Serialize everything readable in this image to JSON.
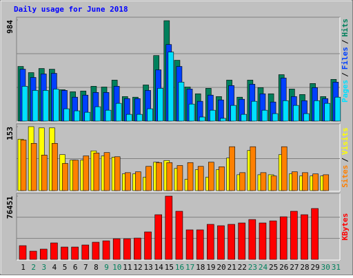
{
  "chart_data": [
    {
      "type": "bar",
      "title": "Daily usage for June 2018",
      "ylim": [
        0,
        984
      ],
      "yticks": [
        984
      ],
      "legend_separator": "/",
      "series": [
        {
          "name": "Hits",
          "color": "#00805c",
          "values": [
            532,
            472,
            512,
            505,
            306,
            286,
            293,
            339,
            332,
            399,
            239,
            233,
            352,
            638,
            977,
            592,
            332,
            266,
            319,
            239,
            399,
            233,
            399,
            326,
            266,
            452,
            312,
            259,
            366,
            239,
            406
          ]
        },
        {
          "name": "Files",
          "color": "#0040ff",
          "values": [
            505,
            425,
            459,
            465,
            299,
            233,
            253,
            279,
            279,
            339,
            219,
            219,
            299,
            499,
            745,
            532,
            312,
            193,
            253,
            206,
            346,
            213,
            359,
            266,
            186,
            419,
            239,
            199,
            326,
            219,
            379
          ]
        },
        {
          "name": "Pages",
          "color": "#00e0ff",
          "values": [
            339,
            299,
            299,
            312,
            120,
            100,
            86,
            140,
            106,
            173,
            66,
            66,
            120,
            319,
            672,
            379,
            166,
            40,
            106,
            27,
            153,
            66,
            193,
            106,
            73,
            199,
            153,
            73,
            199,
            173,
            233
          ]
        }
      ]
    },
    {
      "type": "bar",
      "ylim": [
        0,
        153
      ],
      "yticks": [
        153
      ],
      "legend_separator": "/",
      "series": [
        {
          "name": "Visits",
          "color": "#ffff00",
          "values": [
            123,
            153,
            150,
            150,
            86,
            73,
            73,
            95,
            83,
            80,
            40,
            40,
            32,
            68,
            72,
            53,
            27,
            50,
            32,
            50,
            78,
            38,
            96,
            38,
            38,
            86,
            40,
            35,
            35,
            35,
            null
          ]
        },
        {
          "name": "Sites",
          "color": "#ff8000",
          "values": [
            121,
            113,
            85,
            113,
            65,
            73,
            83,
            90,
            91,
            81,
            43,
            45,
            58,
            67,
            67,
            60,
            67,
            58,
            68,
            57,
            105,
            43,
            105,
            43,
            35,
            105,
            45,
            43,
            40,
            38,
            null
          ]
        }
      ]
    },
    {
      "type": "bar",
      "ylim": [
        0,
        76451
      ],
      "yticks": [
        76451
      ],
      "categories": [
        "1",
        "2",
        "3",
        "4",
        "5",
        "6",
        "7",
        "8",
        "9",
        "10",
        "11",
        "12",
        "13",
        "14",
        "15",
        "16",
        "17",
        "18",
        "19",
        "20",
        "21",
        "22",
        "23",
        "24",
        "25",
        "26",
        "27",
        "28",
        "29",
        "30",
        "31"
      ],
      "category_colors": [
        "#000000",
        "#00805c",
        "#00805c",
        "#000000",
        "#000000",
        "#000000",
        "#000000",
        "#000000",
        "#00805c",
        "#00805c",
        "#000000",
        "#000000",
        "#000000",
        "#000000",
        "#000000",
        "#00805c",
        "#00805c",
        "#000000",
        "#000000",
        "#000000",
        "#000000",
        "#000000",
        "#00805c",
        "#00805c",
        "#000000",
        "#000000",
        "#000000",
        "#000000",
        "#000000",
        "#00805c",
        "#00805c"
      ],
      "series": [
        {
          "name": "KBytes",
          "color": "#ff0000",
          "values": [
            16620,
            9972,
            12465,
            19944,
            14958,
            14958,
            17451,
            20775,
            22437,
            24930,
            24930,
            25761,
            33240,
            54015,
            76451,
            58170,
            35733,
            35733,
            42381,
            40719,
            42381,
            44043,
            48198,
            44043,
            46536,
            51522,
            58170,
            54015,
            61494,
            null,
            null
          ]
        }
      ]
    }
  ]
}
